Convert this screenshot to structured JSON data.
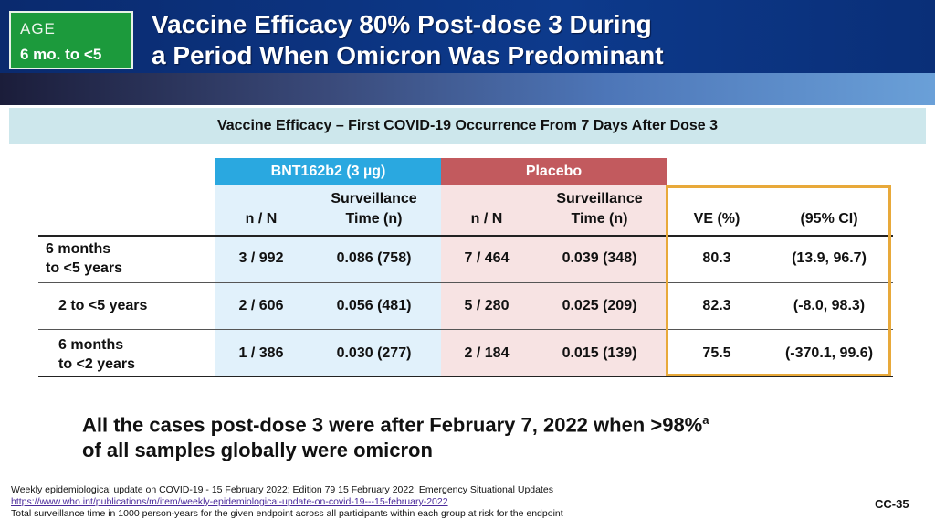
{
  "header": {
    "age_label": "AGE",
    "age_value": "6 mo. to <5",
    "title_line1": "Vaccine Efficacy 80% Post-dose 3 During",
    "title_line2": "a Period When Omicron Was Predominant",
    "colors": {
      "banner": "#0d3a8c",
      "age_box": "#1c9a3c"
    }
  },
  "subtitle": "Vaccine Efficacy – First COVID-19 Occurrence From 7 Days After Dose 3",
  "table": {
    "groups": {
      "bnt": "BNT162b2 (3 µg)",
      "placebo": "Placebo"
    },
    "columns": {
      "nN": "n / N",
      "surv_line1": "Surveillance",
      "surv_line2": "Time (n)",
      "ve": "VE (%)",
      "ci": "(95% CI)"
    },
    "rows": [
      {
        "label_line1": "6 months",
        "label_line2": "to <5 years",
        "bnt_nN": "3 / 992",
        "bnt_surv": "0.086 (758)",
        "pla_nN": "7 / 464",
        "pla_surv": "0.039 (348)",
        "ve": "80.3",
        "ci": "(13.9, 96.7)"
      },
      {
        "label_line1": "2 to <5 years",
        "label_line2": "",
        "bnt_nN": "2 / 606",
        "bnt_surv": "0.056 (481)",
        "pla_nN": "5 / 280",
        "pla_surv": "0.025 (209)",
        "ve": "82.3",
        "ci": "(-8.0, 98.3)"
      },
      {
        "label_line1": "6 months",
        "label_line2": "to <2 years",
        "bnt_nN": "1 / 386",
        "bnt_surv": "0.030 (277)",
        "pla_nN": "2 / 184",
        "pla_surv": "0.015 (139)",
        "ve": "75.5",
        "ci": "(-370.1, 99.6)"
      }
    ],
    "colors": {
      "bnt": "#2aa8e0",
      "placebo": "#c25a5e",
      "ve_border": "#e8a93a"
    }
  },
  "note": {
    "line1": "All the cases post-dose 3 were after February 7, 2022 when >98%",
    "superscript": "a",
    "line2": "of all samples globally were omicron"
  },
  "footer": {
    "line1": "Weekly epidemiological update on COVID-19 - 15 February 2022; Edition 79 15 February 2022; Emergency Situational Updates",
    "link": "https://www.who.int/publications/m/item/weekly-epidemiological-update-on-covid-19---15-february-2022",
    "line3": "Total surveillance time in 1000 person-years for the given endpoint across all participants within each group at risk for the endpoint",
    "slide_id": "CC-35"
  }
}
